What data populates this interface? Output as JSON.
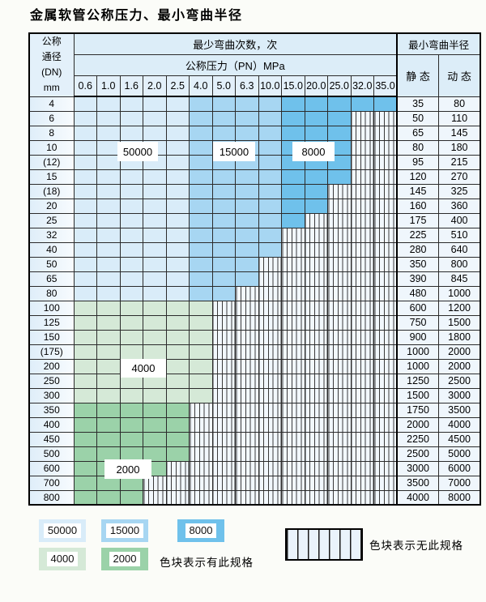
{
  "title": "金属软管公称压力、最小弯曲半径",
  "colors": {
    "c50000": "#d9ecf9",
    "c15000": "#a7d6f2",
    "c8000": "#6fc1eb",
    "c4000": "#d5e9d7",
    "c2000": "#9bd2a9",
    "header_bg": "#dcedf8",
    "hatch_bg": "#f2f8fd",
    "grid_line": "#2b2b2b"
  },
  "table": {
    "header": {
      "dn_lines": [
        "公称",
        "通径",
        "(DN)",
        "mm"
      ],
      "cycles_title": "最少弯曲次数，次",
      "pressure_title": "公称压力（PN）MPa",
      "pressures": [
        "0.6",
        "1.0",
        "1.6",
        "2.0",
        "2.5",
        "4.0",
        "5.0",
        "6.3",
        "10.0",
        "15.0",
        "20.0",
        "25.0",
        "32.0",
        "35.0"
      ],
      "radius_title": "最小弯曲半径",
      "static_label": "静 态",
      "dynamic_label": "动 态"
    },
    "cycle_codes": {
      "A": "50000",
      "B": "15000",
      "C": "8000",
      "D": "4000",
      "E": "2000",
      "-": "无此规格"
    },
    "rows": [
      {
        "dn": "4",
        "cells": "AAAAABBBBCCCCC",
        "static": "35",
        "dynamic": "80"
      },
      {
        "dn": "6",
        "cells": "AAAAABBBBCCC--",
        "static": "50",
        "dynamic": "110"
      },
      {
        "dn": "8",
        "cells": "AAAAABBBBCCC--",
        "static": "65",
        "dynamic": "145"
      },
      {
        "dn": "10",
        "cells": "AAAAABBBBCCC--",
        "static": "80",
        "dynamic": "180"
      },
      {
        "dn": "(12)",
        "cells": "AAAAABBBBCCC--",
        "static": "95",
        "dynamic": "215"
      },
      {
        "dn": "15",
        "cells": "AAAAABBBBCCC--",
        "static": "120",
        "dynamic": "270"
      },
      {
        "dn": "(18)",
        "cells": "AAAAABBBBCC---",
        "static": "145",
        "dynamic": "325"
      },
      {
        "dn": "20",
        "cells": "AAAAABBBBCC---",
        "static": "160",
        "dynamic": "360"
      },
      {
        "dn": "25",
        "cells": "AAAAABBBBC----",
        "static": "175",
        "dynamic": "400"
      },
      {
        "dn": "32",
        "cells": "AAAAABBBB-----",
        "static": "225",
        "dynamic": "510"
      },
      {
        "dn": "40",
        "cells": "AAAAABBBB-----",
        "static": "280",
        "dynamic": "640"
      },
      {
        "dn": "50",
        "cells": "AAAAABBB------",
        "static": "350",
        "dynamic": "800"
      },
      {
        "dn": "65",
        "cells": "AAAAABBB------",
        "static": "390",
        "dynamic": "845"
      },
      {
        "dn": "80",
        "cells": "AAAAABB-------",
        "static": "480",
        "dynamic": "1000"
      },
      {
        "dn": "100",
        "cells": "DDDDDD--------",
        "static": "600",
        "dynamic": "1200"
      },
      {
        "dn": "125",
        "cells": "DDDDDD--------",
        "static": "750",
        "dynamic": "1500"
      },
      {
        "dn": "150",
        "cells": "DDDDDD--------",
        "static": "900",
        "dynamic": "1800"
      },
      {
        "dn": "(175)",
        "cells": "DDDDDD--------",
        "static": "1000",
        "dynamic": "2000"
      },
      {
        "dn": "200",
        "cells": "DDDDDD--------",
        "static": "1000",
        "dynamic": "2000"
      },
      {
        "dn": "250",
        "cells": "DDDDDD--------",
        "static": "1250",
        "dynamic": "2500"
      },
      {
        "dn": "300",
        "cells": "DDDDDD--------",
        "static": "1500",
        "dynamic": "3000"
      },
      {
        "dn": "350",
        "cells": "EEEEE---------",
        "static": "1750",
        "dynamic": "3500"
      },
      {
        "dn": "400",
        "cells": "EEEEE---------",
        "static": "2000",
        "dynamic": "4000"
      },
      {
        "dn": "450",
        "cells": "EEEEE---------",
        "static": "2250",
        "dynamic": "4500"
      },
      {
        "dn": "500",
        "cells": "EEEEE---------",
        "static": "2500",
        "dynamic": "5000"
      },
      {
        "dn": "600",
        "cells": "EEEE----------",
        "static": "3000",
        "dynamic": "6000"
      },
      {
        "dn": "700",
        "cells": "EEE-----------",
        "static": "3500",
        "dynamic": "7000"
      },
      {
        "dn": "800",
        "cells": "EEE-----------",
        "static": "4000",
        "dynamic": "8000"
      }
    ]
  },
  "overlays": {
    "b50000": {
      "label": "50000"
    },
    "b15000": {
      "label": "15000"
    },
    "b8000": {
      "label": "8000"
    },
    "b4000": {
      "label": "4000"
    },
    "b2000": {
      "label": "2000"
    }
  },
  "legend": {
    "items": [
      {
        "label": "50000",
        "color_key": "c50000"
      },
      {
        "label": "15000",
        "color_key": "c15000"
      },
      {
        "label": "8000",
        "color_key": "c8000"
      },
      {
        "label": "4000",
        "color_key": "c4000"
      },
      {
        "label": "2000",
        "color_key": "c2000"
      }
    ],
    "has_spec_text": "色块表示有此规格",
    "no_spec_text": "色块表示无此规格"
  }
}
